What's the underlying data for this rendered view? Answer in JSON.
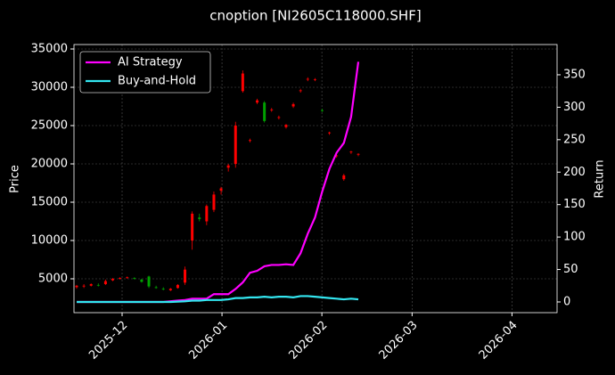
{
  "chart_data": {
    "type": "candlestick",
    "title": "cnoption [NI2605C118000.SHF]",
    "y_label": "Price",
    "y2_label": "Return",
    "ylim": [
      581,
      35581
    ],
    "yticks": [
      5000,
      10000,
      15000,
      20000,
      25000,
      30000,
      35000
    ],
    "y2lim": [
      -16.5,
      396.6
    ],
    "y2ticks": [
      0,
      50,
      100,
      150,
      200,
      250,
      300,
      350
    ],
    "xticks": [
      "2025-12",
      "2026-01",
      "2026-02",
      "2026-03",
      "2026-04"
    ],
    "grid": true,
    "legend": "upper left",
    "up_color": "#ff0000",
    "down_color": "#00a000",
    "candles": {
      "open": [
        3900,
        4000,
        4100,
        4200,
        4300,
        4800,
        5000,
        5100,
        5100,
        4900,
        5300,
        3900,
        3700,
        3500,
        3800,
        4500,
        10000,
        13000,
        12500,
        14000,
        16500,
        19500,
        20000,
        29500,
        23000,
        28000,
        28000,
        27000,
        26000,
        24800,
        27500,
        29500,
        31000,
        31000,
        27000,
        24000,
        21000,
        18000,
        21500,
        21200
      ],
      "high": [
        4200,
        4300,
        4400,
        4400,
        4900,
        5100,
        5200,
        5300,
        5200,
        5000,
        5400,
        4100,
        3900,
        3800,
        4300,
        6600,
        13800,
        13500,
        14700,
        16400,
        17000,
        20000,
        25500,
        32200,
        23300,
        28500,
        28200,
        27300,
        26300,
        25200,
        28000,
        29800,
        31300,
        31200,
        27200,
        24200,
        21200,
        18700,
        21700,
        21400
      ],
      "low": [
        3700,
        3800,
        4000,
        4000,
        4200,
        4700,
        4900,
        5000,
        4900,
        4500,
        3800,
        3700,
        3500,
        3400,
        3700,
        4200,
        8800,
        12500,
        12000,
        13700,
        16000,
        19000,
        19500,
        29300,
        22800,
        27800,
        25400,
        26800,
        25800,
        24600,
        27300,
        29300,
        30800,
        30800,
        26800,
        23800,
        20800,
        17800,
        21300,
        21000
      ],
      "close": [
        4100,
        4100,
        4300,
        4150,
        4700,
        5000,
        5100,
        5200,
        5000,
        4600,
        4000,
        3800,
        3600,
        3700,
        4200,
        6200,
        13500,
        12800,
        14500,
        16000,
        16800,
        19800,
        25000,
        31800,
        23100,
        28300,
        25600,
        27100,
        26100,
        25100,
        27800,
        29600,
        31100,
        31050,
        26900,
        24100,
        21100,
        18500,
        21600,
        21300
      ]
    },
    "series": [
      {
        "name": "AI Strategy",
        "color": "#ff00ff",
        "axis": "y2",
        "values": [
          0,
          0,
          0,
          0,
          0,
          0,
          0,
          0,
          0,
          0,
          0,
          0,
          0,
          1,
          2,
          3,
          5,
          5,
          5,
          12,
          12,
          12,
          20,
          30,
          45,
          48,
          55,
          57,
          57,
          58,
          57,
          75,
          105,
          130,
          170,
          205,
          230,
          245,
          285,
          370
        ]
      },
      {
        "name": "Buy-and-Hold",
        "color": "#33e6f0",
        "axis": "y2",
        "values": [
          0,
          0,
          0,
          0,
          0,
          0,
          0,
          0,
          0,
          0,
          0,
          0,
          0,
          0,
          0.5,
          1,
          2,
          2,
          3,
          3,
          3,
          4,
          6,
          6,
          7,
          7,
          8,
          7,
          8,
          8,
          7,
          9,
          9,
          8,
          7,
          6,
          5,
          4,
          5,
          4
        ]
      }
    ]
  }
}
